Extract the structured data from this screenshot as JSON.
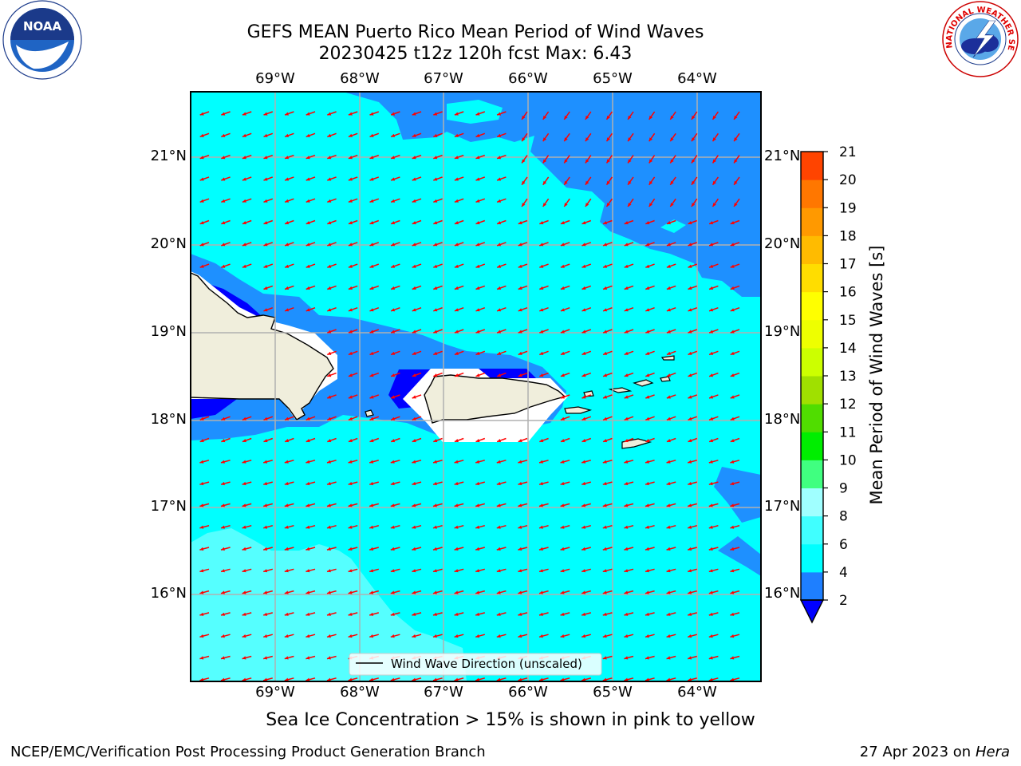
{
  "header": {
    "title_line1": "GEFS MEAN Puerto Rico Mean Period of Wind Waves",
    "title_line2": "20230425 t12z 120h fcst   Max: 6.43"
  },
  "logos": {
    "left": "NOAA",
    "left_ring": "NATIONAL OCEANIC AND ATMOSPHERIC ADMINISTRATION · U.S. DEPARTMENT OF COMMERCE",
    "right_ring": "NATIONAL WEATHER SERVICE"
  },
  "map": {
    "lon_labels": [
      "69°W",
      "68°W",
      "67°W",
      "66°W",
      "65°W",
      "64°W"
    ],
    "lat_labels": [
      "21°N",
      "20°N",
      "19°N",
      "18°N",
      "17°N",
      "16°N"
    ],
    "legend_label": "Wind Wave Direction (unscaled)",
    "arrow_color": "#ff0000",
    "ocean_color_main": "#00ffff",
    "ocean_color_dark": "#1e90ff",
    "ocean_color_light": "#55ffff",
    "land_color": "#f0eedc"
  },
  "colorbar": {
    "label": "Mean Period of Wind Waves [s]",
    "ticks": [
      "2",
      "4",
      "6",
      "8",
      "9",
      "10",
      "11",
      "12",
      "13",
      "14",
      "15",
      "16",
      "17",
      "18",
      "19",
      "20",
      "21"
    ],
    "colors": [
      "#1e7fff",
      "#00ffff",
      "#40ffff",
      "#a0ffff",
      "#40ff80",
      "#00ee00",
      "#50dd00",
      "#a0e000",
      "#ccff00",
      "#eeff00",
      "#ffff00",
      "#ffdd00",
      "#ffbb00",
      "#ff9900",
      "#ff7700",
      "#ff4400",
      "#ff0000"
    ],
    "under_color": "#0000ff"
  },
  "footer": {
    "note": "Sea Ice Concentration > 15% is shown in pink to yellow",
    "left": "NCEP/EMC/Verification Post Processing Product Generation Branch",
    "date": "27 Apr 2023 on ",
    "system": "Hera"
  }
}
